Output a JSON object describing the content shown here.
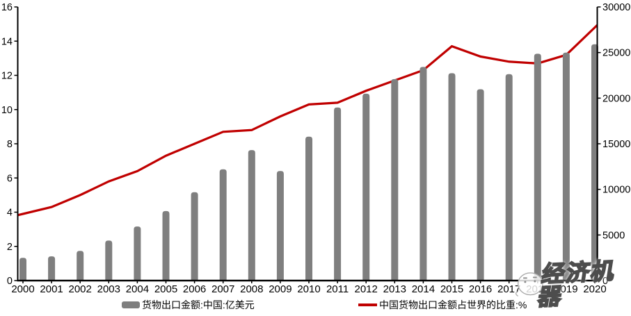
{
  "chart_data": {
    "type": "bar+line combo",
    "title": "",
    "categories": [
      "2000",
      "2001",
      "2002",
      "2003",
      "2004",
      "2005",
      "2006",
      "2007",
      "2008",
      "2009",
      "2010",
      "2011",
      "2012",
      "2013",
      "2014",
      "2015",
      "2016",
      "2017",
      "2018",
      "2019",
      "2020"
    ],
    "series": [
      {
        "name": "货物出口金额:中国:亿美元",
        "type": "bar",
        "axis": "right",
        "color": "#7f7f7f",
        "values": [
          2492,
          2661,
          3256,
          4382,
          5933,
          7620,
          9690,
          12205,
          14307,
          12016,
          15778,
          18984,
          20487,
          22090,
          23422,
          22735,
          20976,
          22633,
          24867,
          24995,
          25906
        ]
      },
      {
        "name": "中国货物出口金额占世界的比重:%",
        "type": "line",
        "axis": "left",
        "color": "#c00000",
        "values": [
          3.9,
          4.3,
          5.0,
          5.8,
          6.4,
          7.3,
          8.0,
          8.7,
          8.8,
          9.6,
          10.3,
          10.4,
          11.1,
          11.7,
          12.3,
          13.7,
          13.1,
          12.8,
          12.7,
          13.2,
          14.8
        ]
      }
    ],
    "left_axis": {
      "min": 0,
      "max": 16,
      "step": 2,
      "ticks": [
        0,
        2,
        4,
        6,
        8,
        10,
        12,
        14,
        16
      ]
    },
    "right_axis": {
      "min": 0,
      "max": 30000,
      "step": 5000,
      "ticks": [
        0,
        5000,
        10000,
        15000,
        20000,
        25000,
        30000
      ]
    },
    "grid": false,
    "legend_position": "bottom",
    "axis_color": "#000000",
    "text_color": "#000000"
  },
  "watermark": {
    "text": "经济机器",
    "icon": "robot-face"
  }
}
